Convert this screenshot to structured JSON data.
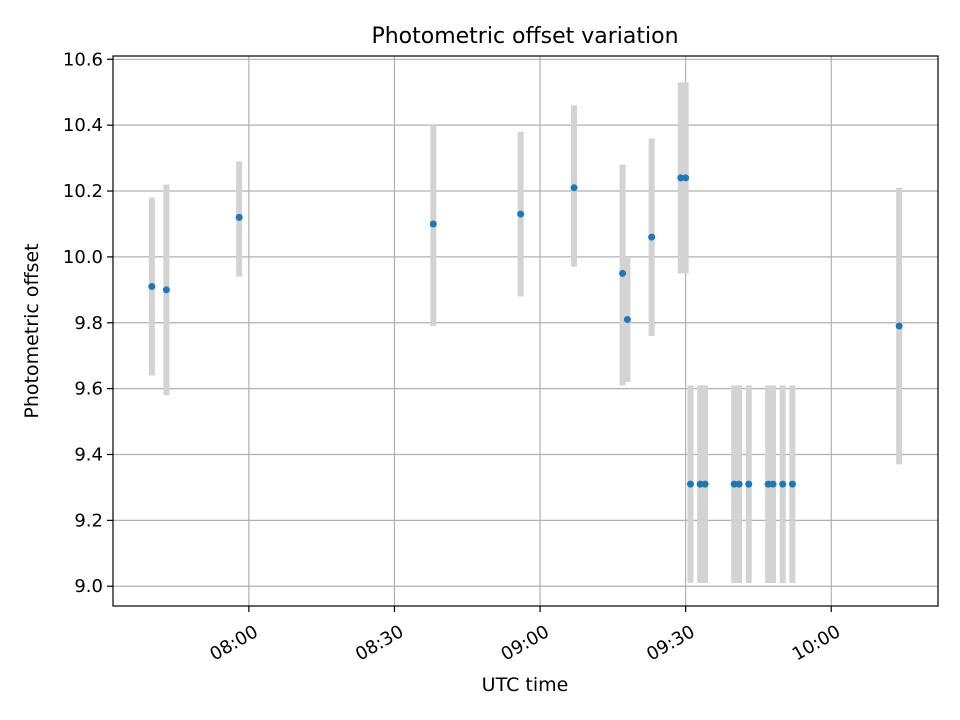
{
  "chart_data": {
    "type": "scatter",
    "title": "Photometric offset variation",
    "xlabel": "UTC time",
    "ylabel": "Photometric offset",
    "x_axis_type": "time",
    "xlim": [
      "07:32",
      "10:22"
    ],
    "ylim": [
      8.94,
      10.61
    ],
    "x_ticks": [
      "08:00",
      "08:30",
      "09:00",
      "09:30",
      "10:00"
    ],
    "y_ticks": [
      "9.0",
      "9.2",
      "9.4",
      "9.6",
      "9.8",
      "10.0",
      "10.2",
      "10.4",
      "10.6"
    ],
    "grid": true,
    "legend": "none",
    "colors": {
      "point": "#1f77b4",
      "error_bar": "#d3d3d3",
      "grid": "#b0b0b0"
    },
    "points": [
      {
        "x": "07:40",
        "y": 9.91,
        "yerr_low": 9.64,
        "yerr_high": 10.18
      },
      {
        "x": "07:43",
        "y": 9.9,
        "yerr_low": 9.58,
        "yerr_high": 10.22
      },
      {
        "x": "07:58",
        "y": 10.12,
        "yerr_low": 9.94,
        "yerr_high": 10.29
      },
      {
        "x": "08:38",
        "y": 10.1,
        "yerr_low": 9.79,
        "yerr_high": 10.4
      },
      {
        "x": "08:56",
        "y": 10.13,
        "yerr_low": 9.88,
        "yerr_high": 10.38
      },
      {
        "x": "09:07",
        "y": 10.21,
        "yerr_low": 9.97,
        "yerr_high": 10.46
      },
      {
        "x": "09:17",
        "y": 9.95,
        "yerr_low": 9.61,
        "yerr_high": 10.28
      },
      {
        "x": "09:18",
        "y": 9.81,
        "yerr_low": 9.62,
        "yerr_high": 10.0
      },
      {
        "x": "09:23",
        "y": 10.06,
        "yerr_low": 9.76,
        "yerr_high": 10.36
      },
      {
        "x": "09:29",
        "y": 10.24,
        "yerr_low": 9.95,
        "yerr_high": 10.53
      },
      {
        "x": "09:30",
        "y": 10.24,
        "yerr_low": 9.95,
        "yerr_high": 10.53
      },
      {
        "x": "09:31",
        "y": 9.31,
        "yerr_low": 9.01,
        "yerr_high": 9.61
      },
      {
        "x": "09:33",
        "y": 9.31,
        "yerr_low": 9.01,
        "yerr_high": 9.61
      },
      {
        "x": "09:34",
        "y": 9.31,
        "yerr_low": 9.01,
        "yerr_high": 9.61
      },
      {
        "x": "09:40",
        "y": 9.31,
        "yerr_low": 9.01,
        "yerr_high": 9.61
      },
      {
        "x": "09:41",
        "y": 9.31,
        "yerr_low": 9.01,
        "yerr_high": 9.61
      },
      {
        "x": "09:43",
        "y": 9.31,
        "yerr_low": 9.01,
        "yerr_high": 9.61
      },
      {
        "x": "09:47",
        "y": 9.31,
        "yerr_low": 9.01,
        "yerr_high": 9.61
      },
      {
        "x": "09:48",
        "y": 9.31,
        "yerr_low": 9.01,
        "yerr_high": 9.61
      },
      {
        "x": "09:50",
        "y": 9.31,
        "yerr_low": 9.01,
        "yerr_high": 9.61
      },
      {
        "x": "09:52",
        "y": 9.31,
        "yerr_low": 9.01,
        "yerr_high": 9.61
      },
      {
        "x": "10:14",
        "y": 9.79,
        "yerr_low": 9.37,
        "yerr_high": 10.21
      }
    ]
  }
}
